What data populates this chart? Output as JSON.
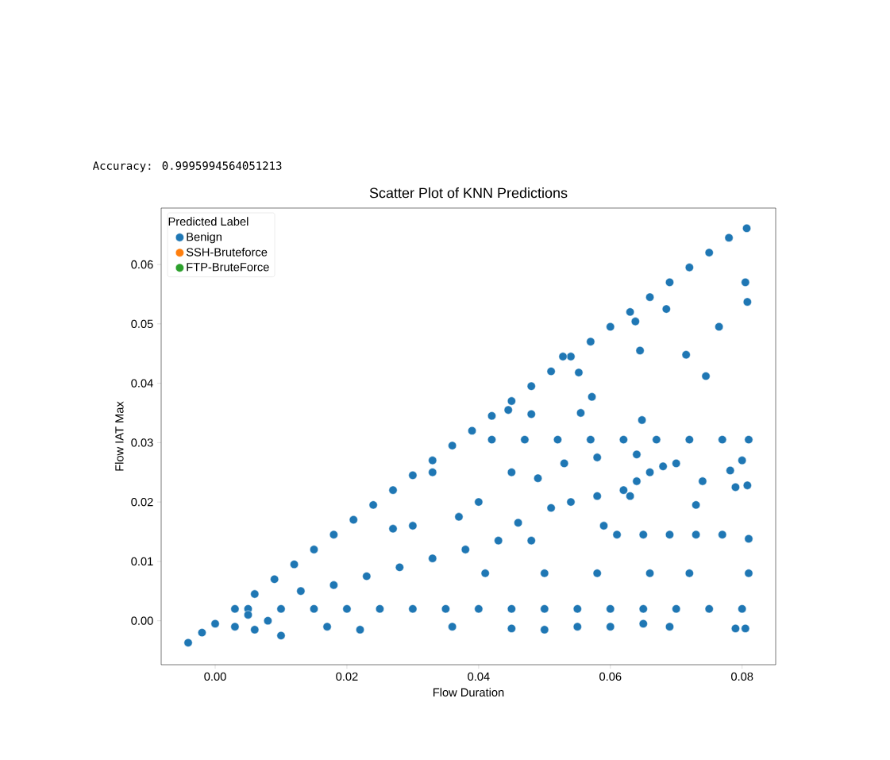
{
  "chart_data": {
    "type": "scatter",
    "title": "Scatter Plot of KNN Predictions",
    "xlabel": "Flow Duration",
    "ylabel": "Flow IAT Max",
    "legend_title": "Predicted Label",
    "legend": "top left",
    "marker": "circle",
    "annotations": [
      "Accuracy: 0.9995994564051213"
    ],
    "xlim": [
      -0.0082,
      0.0851
    ],
    "ylim": [
      -0.0074,
      0.0695
    ],
    "xticks": [
      {
        "value": 0,
        "label": "0.00"
      },
      {
        "value": 0.02,
        "label": "0.02"
      },
      {
        "value": 0.04,
        "label": "0.04"
      },
      {
        "value": 0.06,
        "label": "0.06"
      },
      {
        "value": 0.08,
        "label": "0.08"
      }
    ],
    "yticks": [
      {
        "value": 0,
        "label": "0.00"
      },
      {
        "value": 0.01,
        "label": "0.01"
      },
      {
        "value": 0.02,
        "label": "0.02"
      },
      {
        "value": 0.03,
        "label": "0.03"
      },
      {
        "value": 0.04,
        "label": "0.04"
      },
      {
        "value": 0.05,
        "label": "0.05"
      },
      {
        "value": 0.06,
        "label": "0.06"
      }
    ],
    "series": [
      {
        "name": "Benign",
        "color": "#1f77b4",
        "x": [
          -0.0041,
          -0.002,
          0.0,
          0.003,
          0.006,
          0.009,
          0.012,
          0.015,
          0.018,
          0.021,
          0.024,
          0.027,
          0.03,
          0.033,
          0.036,
          0.039,
          0.042,
          0.045,
          0.048,
          0.051,
          0.054,
          0.057,
          0.06,
          0.063,
          0.066,
          0.069,
          0.072,
          0.075,
          0.078,
          0.0807,
          0.005,
          0.01,
          0.015,
          0.02,
          0.025,
          0.03,
          0.035,
          0.04,
          0.045,
          0.05,
          0.055,
          0.06,
          0.065,
          0.07,
          0.075,
          0.08,
          0.042,
          0.047,
          0.052,
          0.057,
          0.062,
          0.067,
          0.072,
          0.077,
          0.081,
          0.061,
          0.065,
          0.069,
          0.073,
          0.077,
          0.081,
          0.013,
          0.018,
          0.023,
          0.028,
          0.033,
          0.038,
          0.043,
          0.048,
          0.022,
          0.017,
          0.036,
          0.045,
          0.05,
          0.055,
          0.06,
          0.065,
          0.069,
          0.079,
          0.0805,
          0.005,
          0.008,
          0.003,
          0.01,
          0.006,
          0.041,
          0.05,
          0.058,
          0.066,
          0.072,
          0.081,
          0.062,
          0.064,
          0.066,
          0.068,
          0.07,
          0.063,
          0.0765,
          0.0805,
          0.0808,
          0.0745,
          0.0715,
          0.0685,
          0.0638,
          0.0645,
          0.0552,
          0.0572,
          0.0555,
          0.0528,
          0.048,
          0.0445,
          0.0648,
          0.0782,
          0.0808,
          0.045,
          0.049,
          0.053,
          0.058,
          0.059,
          0.051,
          0.054,
          0.046,
          0.04,
          0.037,
          0.033,
          0.03,
          0.027,
          0.058,
          0.064,
          0.073,
          0.074,
          0.08,
          0.079
        ],
        "values": [
          -0.0037,
          -0.002,
          -0.0005,
          0.002,
          0.0045,
          0.007,
          0.0095,
          0.012,
          0.0145,
          0.017,
          0.0195,
          0.022,
          0.0245,
          0.027,
          0.0295,
          0.032,
          0.0345,
          0.037,
          0.0395,
          0.042,
          0.0445,
          0.047,
          0.0495,
          0.052,
          0.0545,
          0.057,
          0.0595,
          0.062,
          0.0645,
          0.0661,
          0.002,
          0.002,
          0.002,
          0.002,
          0.002,
          0.002,
          0.002,
          0.002,
          0.002,
          0.002,
          0.002,
          0.002,
          0.002,
          0.002,
          0.002,
          0.002,
          0.0305,
          0.0305,
          0.0305,
          0.0305,
          0.0305,
          0.0305,
          0.0305,
          0.0305,
          0.0305,
          0.0145,
          0.0145,
          0.0145,
          0.0145,
          0.0145,
          0.0138,
          0.005,
          0.006,
          0.0075,
          0.009,
          0.0105,
          0.012,
          0.0135,
          0.0135,
          -0.0015,
          -0.001,
          -0.001,
          -0.0013,
          -0.0015,
          -0.001,
          -0.001,
          -0.0005,
          -0.001,
          -0.0013,
          -0.0013,
          0.001,
          0.0,
          -0.001,
          -0.0025,
          -0.0015,
          0.008,
          0.008,
          0.008,
          0.008,
          0.008,
          0.008,
          0.022,
          0.0235,
          0.025,
          0.026,
          0.0265,
          0.021,
          0.0495,
          0.057,
          0.0537,
          0.0412,
          0.0448,
          0.0525,
          0.0504,
          0.0455,
          0.0418,
          0.0377,
          0.035,
          0.0445,
          0.0348,
          0.0355,
          0.0338,
          0.0253,
          0.0228,
          0.025,
          0.024,
          0.0265,
          0.021,
          0.016,
          0.019,
          0.02,
          0.0165,
          0.02,
          0.0175,
          0.025,
          0.016,
          0.0155,
          0.0275,
          0.028,
          0.0195,
          0.0235,
          0.027,
          0.0225
        ]
      },
      {
        "name": "SSH-Bruteforce",
        "color": "#ff7f0e"
      },
      {
        "name": "FTP-BruteForce",
        "color": "#2ca02c"
      }
    ]
  }
}
